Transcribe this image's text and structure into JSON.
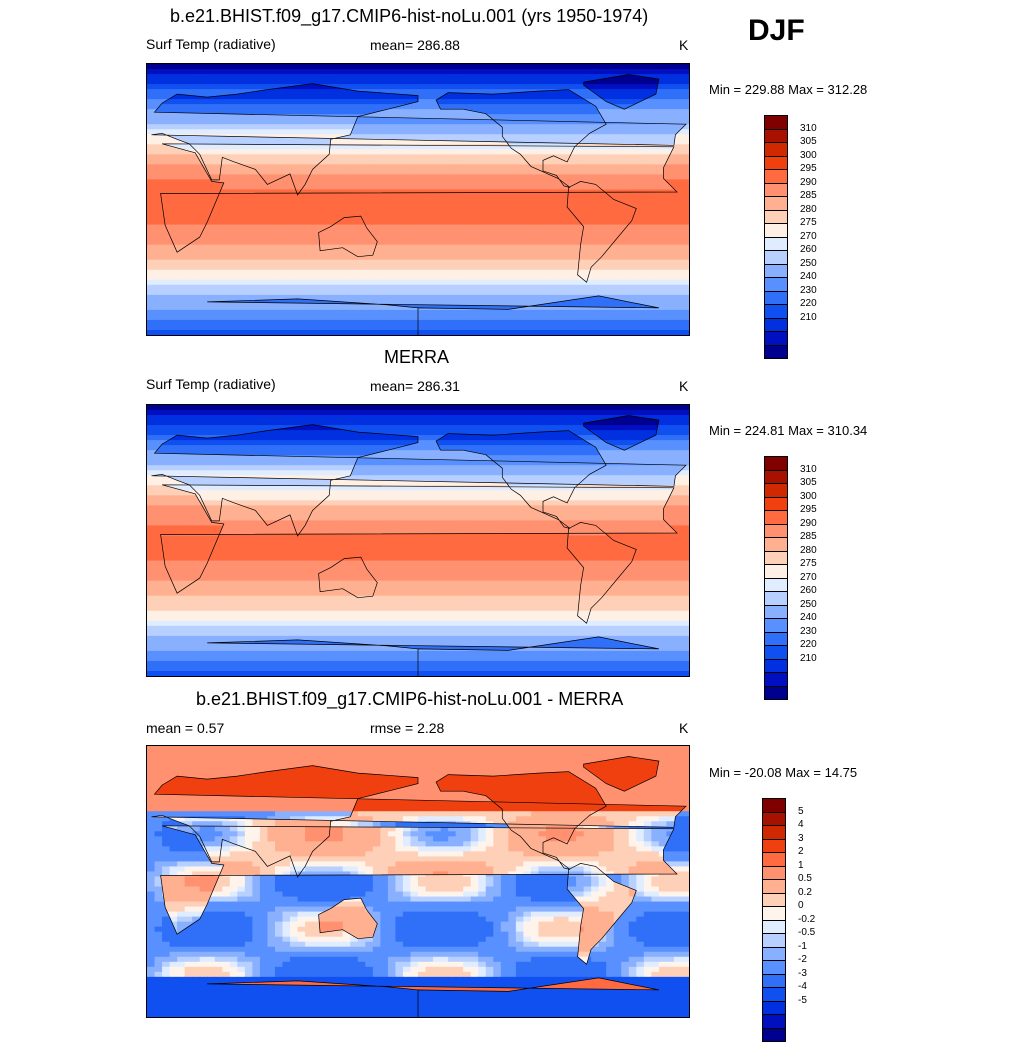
{
  "season": "DJF",
  "colors": {
    "temp_scale": [
      "#000090",
      "#0010c0",
      "#0030e0",
      "#1050f0",
      "#3070f8",
      "#5890ff",
      "#88b0ff",
      "#b8d0ff",
      "#e0ecff",
      "#fff0e6",
      "#ffd0b8",
      "#ffb090",
      "#ff9070",
      "#ff6a40",
      "#f04010",
      "#d02800",
      "#a81000",
      "#800000"
    ],
    "diff_scale": [
      "#000090",
      "#0010c0",
      "#0030e0",
      "#1050f0",
      "#3070f8",
      "#5890ff",
      "#88b0ff",
      "#b8d0ff",
      "#e0ecff",
      "#fff4ec",
      "#ffd0b8",
      "#ffb090",
      "#ff9070",
      "#ff6a40",
      "#f04010",
      "#d02800",
      "#a81000",
      "#800000"
    ]
  },
  "panels": [
    {
      "title": "b.e21.BHIST.f09_g17.CMIP6-hist-noLu.001 (yrs 1950-1974)",
      "left_label": "Surf Temp (radiative)",
      "center_label": "mean= 286.88",
      "unit": "K",
      "minmax": "Min = 229.88 Max = 312.28",
      "colorbar_labels": [
        "310",
        "305",
        "300",
        "295",
        "290",
        "285",
        "280",
        "275",
        "270",
        "260",
        "250",
        "240",
        "230",
        "220",
        "210"
      ],
      "map": "model"
    },
    {
      "title": "MERRA",
      "left_label": "Surf Temp (radiative)",
      "center_label": "mean= 286.31",
      "unit": "K",
      "minmax": "Min = 224.81 Max = 310.34",
      "colorbar_labels": [
        "310",
        "305",
        "300",
        "295",
        "290",
        "285",
        "280",
        "275",
        "270",
        "260",
        "250",
        "240",
        "230",
        "220",
        "210"
      ],
      "map": "obs"
    },
    {
      "title": "b.e21.BHIST.f09_g17.CMIP6-hist-noLu.001 - MERRA",
      "left_label": "mean =   0.57",
      "center_label": "rmse =   2.28",
      "unit": "K",
      "minmax": "Min = -20.08 Max =  14.75",
      "colorbar_labels": [
        "5",
        "4",
        "3",
        "2",
        "1",
        "0.5",
        "0.2",
        "0",
        "-0.2",
        "-0.5",
        "-1",
        "-2",
        "-3",
        "-4",
        "-5"
      ],
      "map": "diff"
    }
  ],
  "chart_data": [
    {
      "type": "heatmap",
      "title": "b.e21.BHIST.f09_g17.CMIP6-hist-noLu.001 (yrs 1950-1974)",
      "variable": "Surf Temp (radiative)",
      "unit": "K",
      "mean": 286.88,
      "min": 229.88,
      "max": 312.28,
      "levels": [
        210,
        220,
        230,
        240,
        250,
        260,
        270,
        275,
        280,
        285,
        290,
        295,
        300,
        305,
        310
      ]
    },
    {
      "type": "heatmap",
      "title": "MERRA",
      "variable": "Surf Temp (radiative)",
      "unit": "K",
      "mean": 286.31,
      "min": 224.81,
      "max": 310.34,
      "levels": [
        210,
        220,
        230,
        240,
        250,
        260,
        270,
        275,
        280,
        285,
        290,
        295,
        300,
        305,
        310
      ]
    },
    {
      "type": "heatmap",
      "title": "b.e21.BHIST.f09_g17.CMIP6-hist-noLu.001 - MERRA",
      "unit": "K",
      "mean": 0.57,
      "rmse": 2.28,
      "min": -20.08,
      "max": 14.75,
      "levels": [
        -5,
        -4,
        -3,
        -2,
        -1,
        -0.5,
        -0.2,
        0,
        0.2,
        0.5,
        1,
        2,
        3,
        4,
        5
      ]
    }
  ]
}
